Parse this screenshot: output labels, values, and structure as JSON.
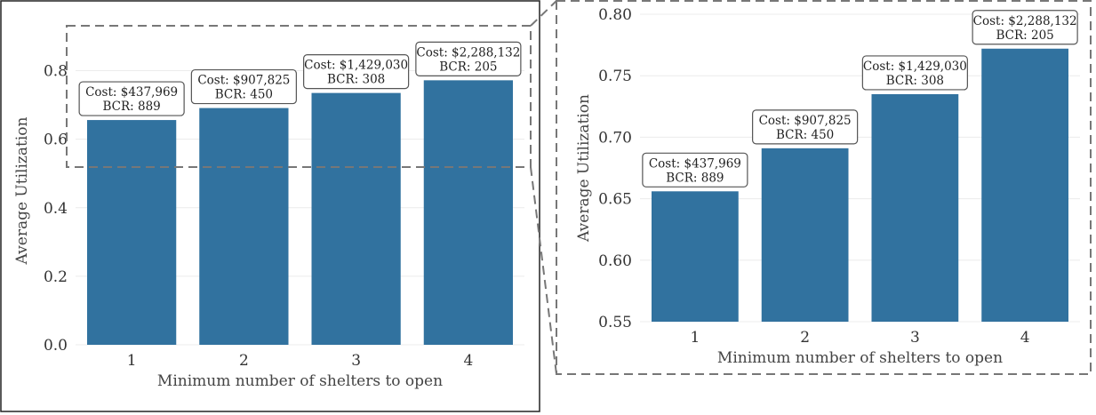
{
  "chart_data": [
    {
      "type": "bar",
      "title": "",
      "xlabel": "Minimum number of shelters to open",
      "ylabel": "Average Utilization",
      "ylim": [
        0,
        0.9
      ],
      "yticks": [
        "0.0",
        "0.2",
        "0.4",
        "0.6",
        "0.8"
      ],
      "categories": [
        "1",
        "2",
        "3",
        "4"
      ],
      "values": [
        0.656,
        0.691,
        0.735,
        0.772
      ],
      "color": "#31729f",
      "grid": true,
      "annotations": [
        {
          "cost": "Cost: $437,969",
          "bcr": "BCR: 889"
        },
        {
          "cost": "Cost: $907,825",
          "bcr": "BCR: 450"
        },
        {
          "cost": "Cost: $1,429,030",
          "bcr": "BCR: 308"
        },
        {
          "cost": "Cost: $2,288,132",
          "bcr": "BCR: 205"
        }
      ]
    },
    {
      "type": "bar",
      "title": "",
      "xlabel": "Minimum number of shelters to open",
      "ylabel": "Average Utilization",
      "ylim": [
        0.55,
        0.8
      ],
      "yticks": [
        "0.55",
        "0.60",
        "0.65",
        "0.70",
        "0.75",
        "0.80"
      ],
      "categories": [
        "1",
        "2",
        "3",
        "4"
      ],
      "values": [
        0.656,
        0.691,
        0.735,
        0.772
      ],
      "color": "#31729f",
      "grid": true,
      "annotations": [
        {
          "cost": "Cost: $437,969",
          "bcr": "BCR: 889"
        },
        {
          "cost": "Cost: $907,825",
          "bcr": "BCR: 450"
        },
        {
          "cost": "Cost: $1,429,030",
          "bcr": "BCR: 308"
        },
        {
          "cost": "Cost: $2,288,132",
          "bcr": "BCR: 205"
        }
      ]
    }
  ]
}
